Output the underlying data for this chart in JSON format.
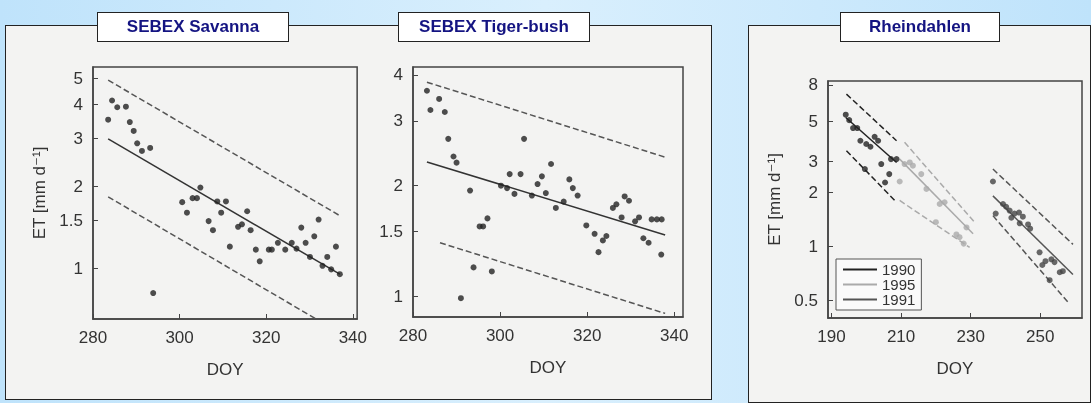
{
  "chart_data": [
    {
      "type": "scatter",
      "title": "SEBEX Savanna",
      "xlabel": "DOY",
      "ylabel": "ET [mm d⁻¹]",
      "log": "y",
      "xlim": [
        280,
        341
      ],
      "xticks": [
        280,
        300,
        320,
        340
      ],
      "ylim": [
        0.65,
        5.5
      ],
      "yticks": [
        1,
        1.5,
        2,
        3,
        4,
        5
      ],
      "grid": false,
      "series": [
        {
          "marker": "circle",
          "color": "#222222",
          "x": [
            283.5,
            284.4,
            285.6,
            287.6,
            288.5,
            289.4,
            290.2,
            291.3,
            293.2,
            293.9,
            300.6,
            301.7,
            303,
            304,
            304.8,
            306.7,
            307.7,
            308.7,
            309.6,
            310.7,
            311.6,
            313.5,
            314.4,
            315.6,
            316.4,
            317.6,
            318.5,
            320.6,
            321.3,
            322.7,
            324.4,
            325.9,
            327,
            328.1,
            329.1,
            330.1,
            331.1,
            332.1,
            333,
            334.1,
            335,
            336.1,
            337
          ],
          "values": [
            3.52,
            4.14,
            3.91,
            3.93,
            3.45,
            3.2,
            2.88,
            2.7,
            2.77,
            0.81,
            1.75,
            1.6,
            1.81,
            1.81,
            1.98,
            1.49,
            1.38,
            1.76,
            1.6,
            1.76,
            1.2,
            1.42,
            1.45,
            1.62,
            1.38,
            1.17,
            1.06,
            1.17,
            1.17,
            1.24,
            1.17,
            1.24,
            1.18,
            1.41,
            1.24,
            1.1,
            1.31,
            1.51,
            1.02,
            1.1,
            0.99,
            1.2,
            0.95
          ]
        },
        {
          "type": "line",
          "color": "#333333",
          "line_style": "solid",
          "x": [
            283.5,
            337
          ],
          "values": [
            2.99,
            0.95
          ]
        },
        {
          "type": "line",
          "color": "#555555",
          "line_style": "dashed",
          "x": [
            283.5,
            337
          ],
          "values": [
            4.92,
            1.56
          ]
        },
        {
          "type": "line",
          "color": "#555555",
          "line_style": "dashed",
          "x": [
            283.5,
            331.5
          ],
          "values": [
            1.83,
            0.65
          ]
        }
      ]
    },
    {
      "type": "scatter",
      "title": "SEBEX Tiger-bush",
      "xlabel": "DOY",
      "log": "y",
      "xlim": [
        280,
        342
      ],
      "xticks": [
        280,
        300,
        320,
        340
      ],
      "ylim": [
        0.88,
        4.2
      ],
      "yticks": [
        1,
        1.5,
        2,
        3,
        4
      ],
      "grid": false,
      "series": [
        {
          "marker": "circle",
          "color": "#222222",
          "x": [
            283.2,
            284,
            286,
            287.3,
            288.1,
            289.3,
            290,
            291,
            293.1,
            293.9,
            295.3,
            296.1,
            297.1,
            298.1,
            300.2,
            301.6,
            302.2,
            304.7,
            303.3,
            305.5,
            307.3,
            308.6,
            309.6,
            310.5,
            311.7,
            312.8,
            314.6,
            315.9,
            316.7,
            317.8,
            319.8,
            321.7,
            322.6,
            323.6,
            324.4,
            325.9,
            326.7,
            327.9,
            328.6,
            329.6,
            331,
            331.9,
            332.9,
            334.1,
            334.8,
            336,
            337.1,
            337
          ],
          "values": [
            3.62,
            3.21,
            3.44,
            3.17,
            2.68,
            2.4,
            2.31,
            0.99,
            1.94,
            1.2,
            1.55,
            1.55,
            1.63,
            1.17,
            2,
            1.97,
            2.15,
            2.15,
            1.9,
            2.68,
            1.88,
            2.02,
            2.12,
            1.91,
            2.29,
            1.74,
            1.81,
            2.08,
            1.97,
            1.88,
            1.56,
            1.48,
            1.32,
            1.42,
            1.46,
            1.74,
            1.78,
            1.64,
            1.87,
            1.82,
            1.6,
            1.64,
            1.44,
            1.4,
            1.62,
            1.62,
            1.62,
            1.3
          ]
        },
        {
          "type": "line",
          "color": "#333333",
          "line_style": "solid",
          "x": [
            283.2,
            337.9
          ],
          "values": [
            2.32,
            1.47
          ]
        },
        {
          "type": "line",
          "color": "#555555",
          "line_style": "dashed",
          "x": [
            283.2,
            337.9
          ],
          "values": [
            3.82,
            2.39
          ]
        },
        {
          "type": "line",
          "color": "#555555",
          "line_style": "dashed",
          "x": [
            286.2,
            337.9
          ],
          "values": [
            1.4,
            0.9
          ]
        }
      ]
    },
    {
      "type": "scatter",
      "title": "Rheindahlen",
      "xlabel": "DOY",
      "ylabel": "ET [mm d⁻¹]",
      "log": "y",
      "xlim": [
        189,
        262
      ],
      "xticks": [
        190,
        210,
        230,
        250
      ],
      "ylim": [
        0.4,
        8.4
      ],
      "yticks": [
        0.5,
        1,
        2,
        3,
        5,
        8
      ],
      "grid": false,
      "legend": "bottom left",
      "series": [
        {
          "marker": "circle",
          "color": "#222222",
          "x": [
            194.1,
            195.1,
            196.2,
            197.4,
            198.3,
            200,
            201.2,
            199.6,
            202.4,
            203.4,
            204.3,
            206.6,
            205.4,
            207.1,
            208.7
          ],
          "values": [
            5.45,
            5.08,
            4.59,
            4.59,
            3.9,
            3.74,
            3.61,
            2.71,
            4.1,
            3.9,
            2.89,
            2.54,
            2.28,
            3.08,
            3.08
          ]
        },
        {
          "type": "line",
          "name": "1990",
          "color": "#222222",
          "line_style": "solid",
          "x": [
            194.1,
            208.7
          ],
          "values": [
            5.26,
            2.95
          ]
        },
        {
          "type": "line",
          "color": "#222222",
          "line_style": "dashed",
          "x": [
            194.3,
            208.7
          ],
          "values": [
            7.1,
            3.9
          ]
        },
        {
          "type": "line",
          "color": "#222222",
          "line_style": "dashed",
          "x": [
            194.3,
            208.2
          ],
          "values": [
            3.43,
            1.81
          ]
        },
        {
          "marker": "circle",
          "color": "#aaaaaa",
          "x": [
            209.6,
            211,
            212.5,
            213.4,
            215.8,
            217.3,
            221.1,
            222.5,
            220,
            225.9,
            226.8,
            228.8,
            228
          ],
          "values": [
            2.31,
            2.89,
            2.95,
            2.83,
            2.54,
            2.1,
            1.73,
            1.77,
            1.37,
            1.17,
            1.13,
            1.28,
            1.04
          ]
        },
        {
          "type": "line",
          "name": "1995",
          "color": "#aaaaaa",
          "line_style": "solid",
          "x": [
            209.6,
            230.7
          ],
          "values": [
            3.08,
            1.18
          ]
        },
        {
          "type": "line",
          "color": "#aaaaaa",
          "line_style": "dashed",
          "x": [
            211,
            231.1
          ],
          "values": [
            3.82,
            1.37
          ]
        },
        {
          "type": "line",
          "color": "#aaaaaa",
          "line_style": "dashed",
          "x": [
            209.6,
            229.7
          ],
          "values": [
            1.81,
            0.99
          ]
        },
        {
          "marker": "circle",
          "color": "#444444",
          "x": [
            236.4,
            237.2,
            239.3,
            240.2,
            241.2,
            241.7,
            242.6,
            243.9,
            244.1,
            245,
            246.5,
            247.1,
            249.8,
            250.6,
            251.5,
            253.2,
            254.1,
            252.7,
            255.6,
            256.5
          ],
          "values": [
            2.31,
            1.53,
            1.73,
            1.67,
            1.59,
            1.45,
            1.53,
            1.55,
            1.35,
            1.47,
            1.33,
            1.26,
            0.93,
            0.79,
            0.83,
            0.85,
            0.82,
            0.65,
            0.72,
            0.73
          ]
        },
        {
          "type": "line",
          "name": "1991",
          "color": "#555555",
          "line_style": "solid",
          "x": [
            236.4,
            259.4
          ],
          "values": [
            1.92,
            0.7
          ]
        },
        {
          "type": "line",
          "color": "#555555",
          "line_style": "dashed",
          "x": [
            236.4,
            259.4
          ],
          "values": [
            2.71,
            1.03
          ]
        },
        {
          "type": "line",
          "color": "#555555",
          "line_style": "dashed",
          "x": [
            236.4,
            258
          ],
          "values": [
            1.49,
            0.49
          ]
        }
      ]
    }
  ]
}
